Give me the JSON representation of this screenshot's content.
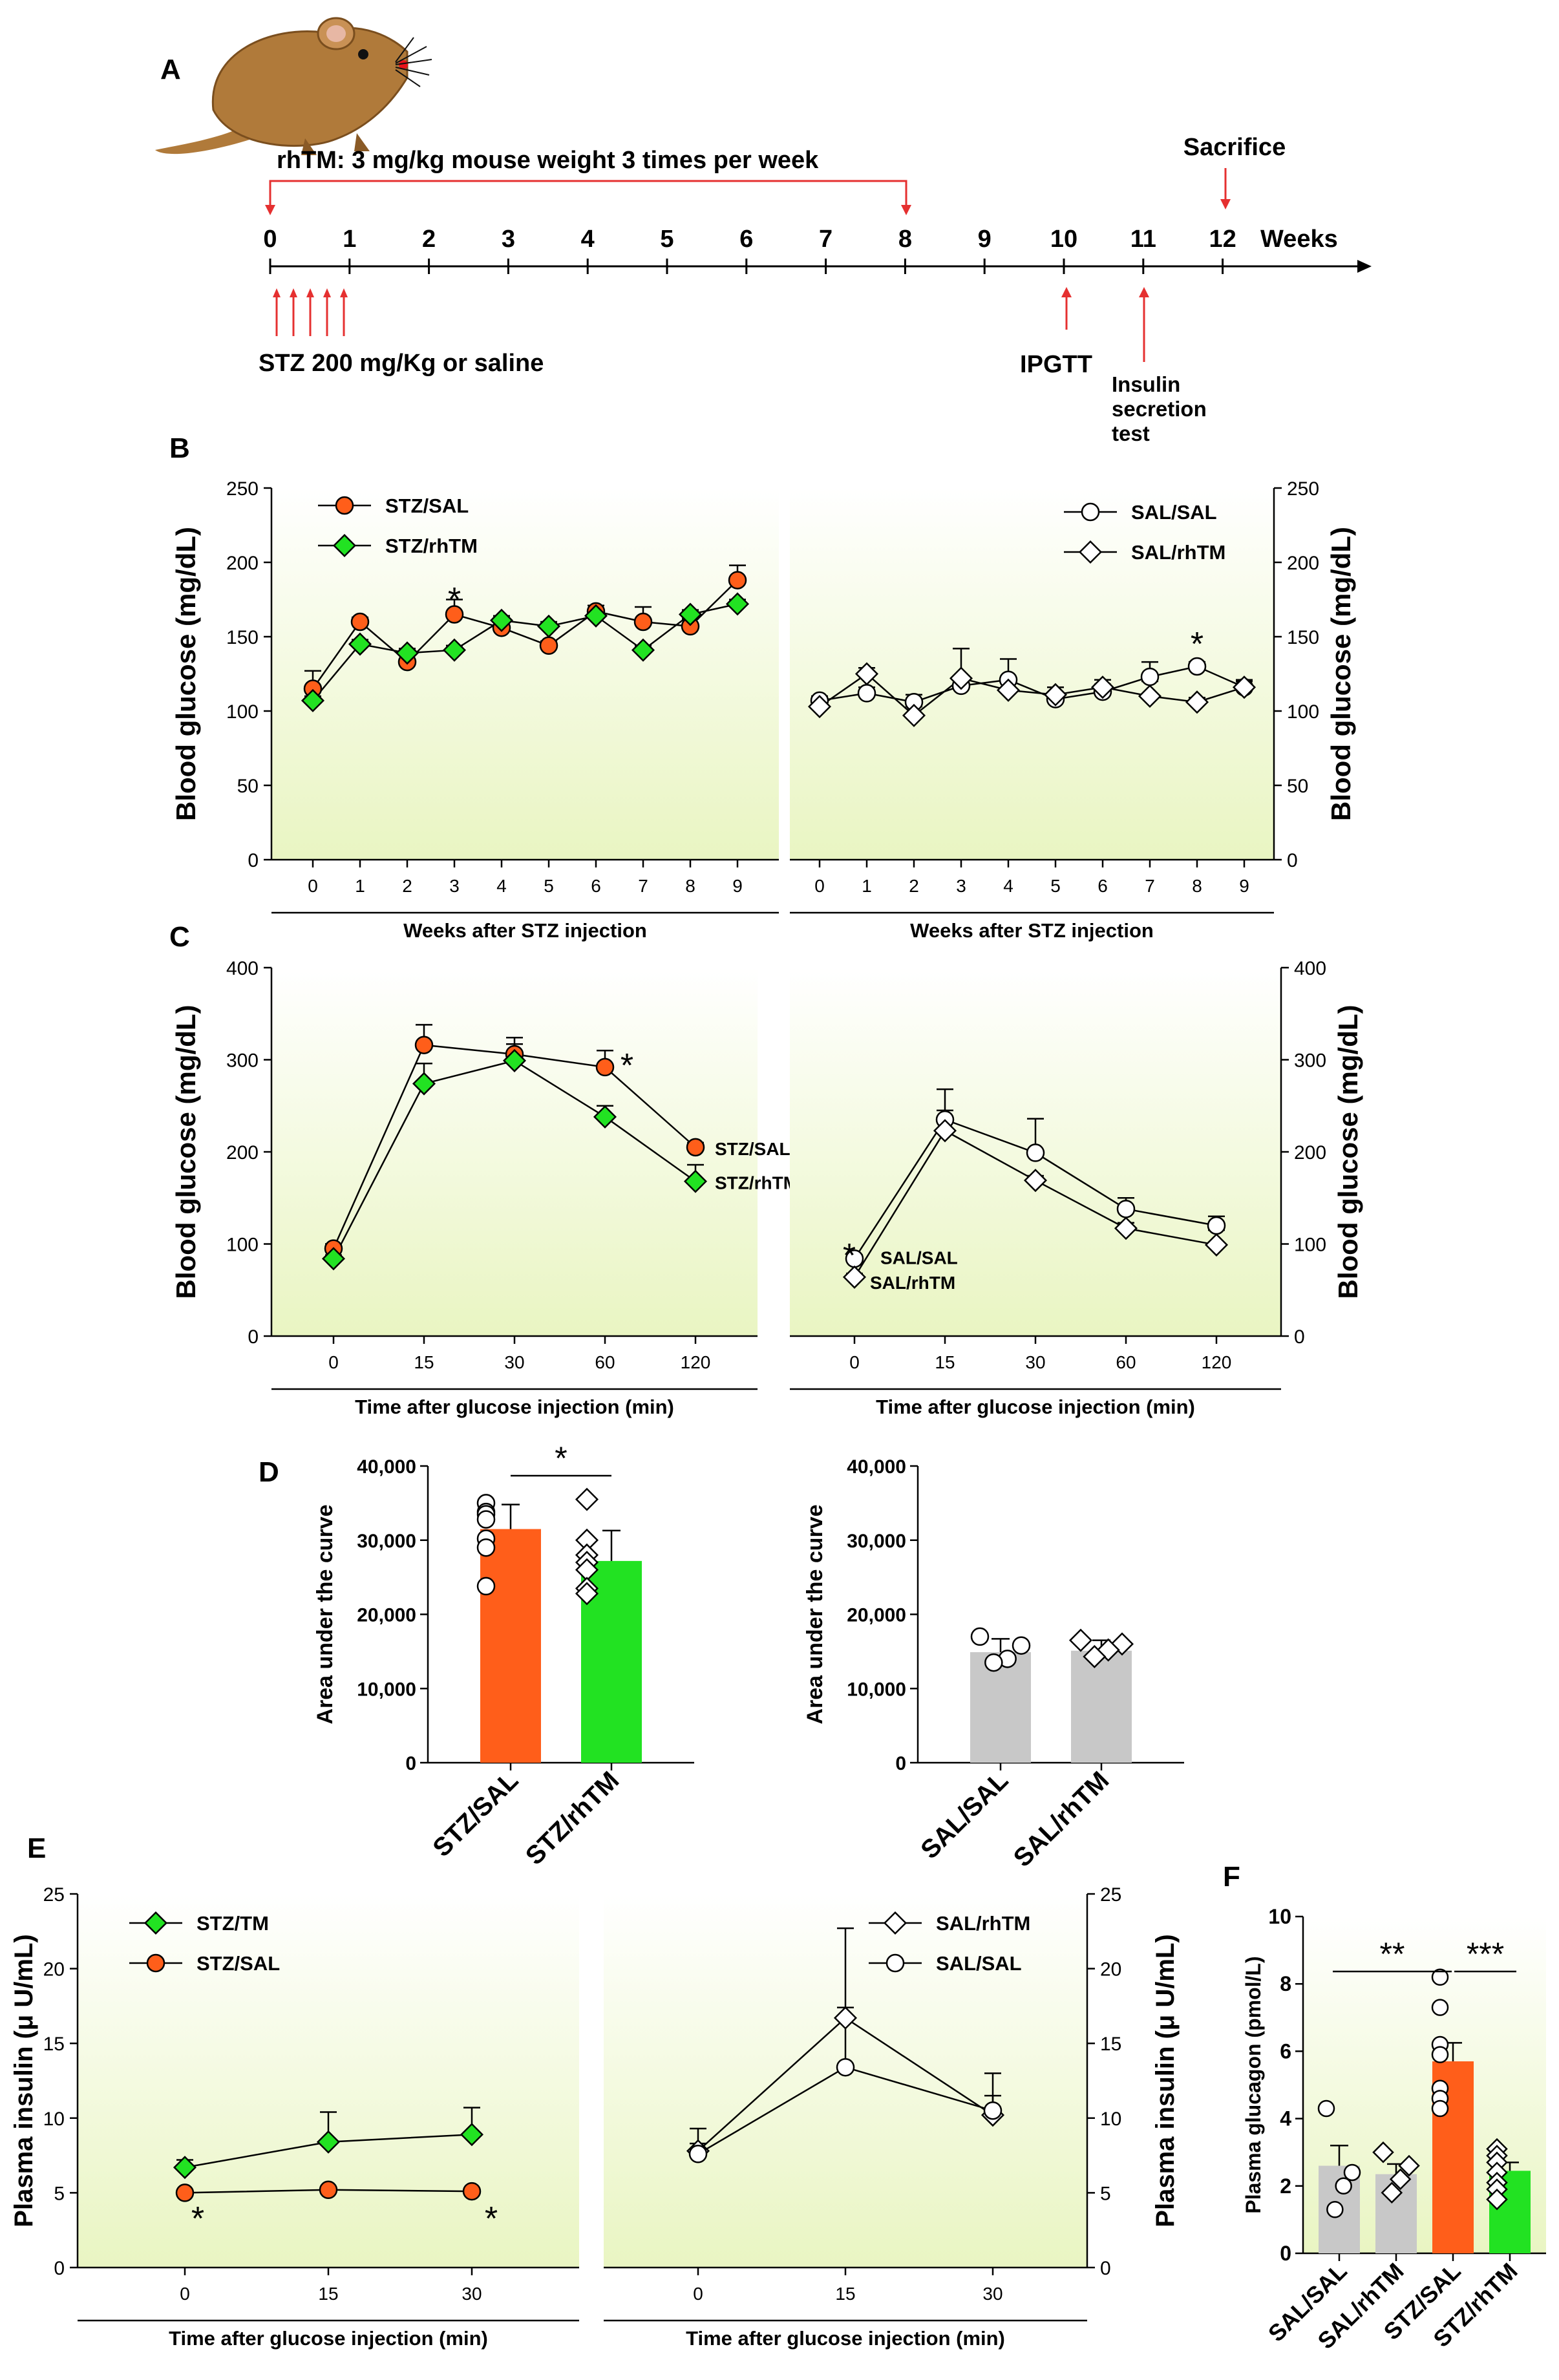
{
  "figure": {
    "panel_labels": [
      "A",
      "B",
      "C",
      "D",
      "E",
      "F"
    ],
    "colors": {
      "stz_sal": "#ff5e1a",
      "stz_rhtm": "#22e222",
      "sal_bar": "#c8c8c8",
      "red_line": "#e53030",
      "bg_top": "#ffffff",
      "bg_bottom": "#e9f5c2",
      "mouse_body": "#b07a3a"
    }
  },
  "timeline": {
    "treatment_label": "rhTM: 3 mg/kg mouse weight 3 times per week",
    "sacrifice_label": "Sacrifice",
    "weeks_label": "Weeks",
    "week_ticks": [
      "0",
      "1",
      "2",
      "3",
      "4",
      "5",
      "6",
      "7",
      "8",
      "9",
      "10",
      "11",
      "12"
    ],
    "stz_label": "STZ 200 mg/Kg or saline",
    "ipgtt_label": "IPGTT",
    "insulin_test_label": [
      "Insulin",
      "secretion",
      "test"
    ],
    "mouse_icon": "mouse-icon"
  },
  "chart_data": [
    {
      "panel": "B",
      "type": "line",
      "xlabel": "Weeks after STZ injection",
      "ylabel": "Blood glucose (mg/dL)",
      "x": [
        "0",
        "1",
        "2",
        "3",
        "4",
        "5",
        "6",
        "7",
        "8",
        "9"
      ],
      "ylim": [
        0,
        250
      ],
      "yticks": [
        "0",
        "50",
        "100",
        "150",
        "200",
        "250"
      ],
      "series": [
        {
          "name": "STZ/SAL",
          "marker": "circle",
          "color": "#ff5e1a",
          "values": [
            115,
            160,
            133,
            165,
            156,
            144,
            167,
            160,
            157,
            188
          ],
          "err": [
            12,
            3,
            5,
            10,
            4,
            3,
            4,
            10,
            5,
            10
          ]
        },
        {
          "name": "STZ/rhTM",
          "marker": "diamond",
          "color": "#22e222",
          "values": [
            107,
            145,
            139,
            141,
            161,
            157,
            164,
            141,
            165,
            172
          ],
          "err": [
            3,
            3,
            3,
            3,
            3,
            3,
            3,
            3,
            3,
            3
          ]
        }
      ],
      "annotations": [
        {
          "text": "*",
          "x": "3"
        }
      ]
    },
    {
      "panel": "B",
      "type": "line",
      "xlabel": "Weeks after STZ injection",
      "ylabel": "Blood glucose (mg/dL)",
      "x": [
        "0",
        "1",
        "2",
        "3",
        "4",
        "5",
        "6",
        "7",
        "8",
        "9"
      ],
      "ylim": [
        0,
        250
      ],
      "yticks": [
        "0",
        "50",
        "100",
        "150",
        "200",
        "250"
      ],
      "series": [
        {
          "name": "SAL/SAL",
          "marker": "circle",
          "color": "#ffffff",
          "values": [
            107,
            112,
            106,
            117,
            121,
            108,
            113,
            123,
            130,
            116
          ],
          "err": [
            3,
            4,
            5,
            6,
            14,
            4,
            5,
            10,
            3,
            4
          ]
        },
        {
          "name": "SAL/rhTM",
          "marker": "diamond",
          "color": "#ffffff",
          "values": [
            103,
            125,
            97,
            122,
            114,
            111,
            116,
            110,
            106,
            116
          ],
          "err": [
            4,
            4,
            6,
            20,
            8,
            5,
            5,
            10,
            3,
            5
          ]
        }
      ],
      "annotations": [
        {
          "text": "*",
          "x": "8"
        }
      ]
    },
    {
      "panel": "C",
      "type": "line",
      "xlabel": "Time after glucose injection (min)",
      "ylabel": "Blood glucose (mg/dL)",
      "x": [
        "0",
        "15",
        "30",
        "60",
        "120"
      ],
      "ylim": [
        0,
        400
      ],
      "yticks": [
        "0",
        "100",
        "200",
        "300",
        "400"
      ],
      "series": [
        {
          "name": "STZ/SAL",
          "marker": "circle",
          "color": "#ff5e1a",
          "values": [
            95,
            316,
            306,
            292,
            205
          ],
          "err": [
            5,
            22,
            18,
            18,
            5
          ]
        },
        {
          "name": "STZ/rhTM",
          "marker": "diamond",
          "color": "#22e222",
          "values": [
            84,
            274,
            299,
            238,
            168
          ],
          "err": [
            4,
            22,
            18,
            12,
            18
          ]
        }
      ],
      "annotations": [
        {
          "text": "*",
          "x": "60"
        }
      ]
    },
    {
      "panel": "C",
      "type": "line",
      "xlabel": "Time after glucose injection (min)",
      "ylabel": "Blood glucose (mg/dL)",
      "x": [
        "0",
        "15",
        "30",
        "60",
        "120"
      ],
      "ylim": [
        0,
        400
      ],
      "yticks": [
        "0",
        "100",
        "200",
        "300",
        "400"
      ],
      "series": [
        {
          "name": "SAL/SAL",
          "marker": "circle",
          "color": "#ffffff",
          "values": [
            84,
            235,
            199,
            138,
            120
          ],
          "err": [
            4,
            33,
            37,
            12,
            10
          ]
        },
        {
          "name": "SAL/rhTM",
          "marker": "diamond",
          "color": "#ffffff",
          "values": [
            64,
            223,
            169,
            117,
            99
          ],
          "err": [
            4,
            22,
            5,
            6,
            16
          ]
        }
      ],
      "annotations": [
        {
          "text": "*",
          "x": "0"
        }
      ]
    },
    {
      "panel": "D",
      "type": "bar",
      "ylabel": "Area under the curve",
      "categories": [
        "STZ/SAL",
        "STZ/rhTM"
      ],
      "ylim": [
        0,
        40000
      ],
      "yticks": [
        "0",
        "10,000",
        "20,000",
        "30,000",
        "40,000"
      ],
      "values": [
        31500,
        27200
      ],
      "err": [
        3300,
        4100
      ],
      "colors": [
        "#ff5e1a",
        "#22e222"
      ],
      "points": [
        [
          35000,
          33800,
          33500,
          32800,
          30200,
          29000,
          23800
        ],
        [
          35500,
          30000,
          28000,
          27000,
          26000,
          23500,
          22800
        ]
      ],
      "annotations": [
        {
          "text": "*",
          "between": [
            "STZ/SAL",
            "STZ/rhTM"
          ]
        }
      ]
    },
    {
      "panel": "D",
      "type": "bar",
      "ylabel": "Area under the curve",
      "categories": [
        "SAL/SAL",
        "SAL/rhTM"
      ],
      "ylim": [
        0,
        40000
      ],
      "yticks": [
        "0",
        "10,000",
        "20,000",
        "30,000",
        "40,000"
      ],
      "values": [
        14900,
        15100
      ],
      "err": [
        1800,
        1400
      ],
      "colors": [
        "#c8c8c8",
        "#c8c8c8"
      ],
      "points": [
        [
          17000,
          15800,
          14000,
          13500
        ],
        [
          16500,
          16000,
          15200,
          14300
        ]
      ]
    },
    {
      "panel": "E",
      "type": "line",
      "xlabel": "Time after glucose injection (min)",
      "ylabel": "Plasma insulin (μ U/mL)",
      "x": [
        "0",
        "15",
        "30"
      ],
      "ylim": [
        0,
        25
      ],
      "yticks": [
        "0",
        "5",
        "10",
        "15",
        "20",
        "25"
      ],
      "series": [
        {
          "name": "STZ/TM",
          "marker": "diamond",
          "color": "#22e222",
          "values": [
            6.7,
            8.4,
            8.9
          ],
          "err": [
            0.5,
            2.0,
            1.8
          ]
        },
        {
          "name": "STZ/SAL",
          "marker": "circle",
          "color": "#ff5e1a",
          "values": [
            5.0,
            5.2,
            5.1
          ],
          "err": [
            0.2,
            0.2,
            0.2
          ]
        }
      ],
      "annotations": [
        {
          "text": "*",
          "x": "0"
        },
        {
          "text": "*",
          "x": "30"
        }
      ]
    },
    {
      "panel": "E",
      "type": "line",
      "xlabel": "Time after glucose injection (min)",
      "ylabel": "Plasma insulin (μ U/mL)",
      "x": [
        "0",
        "15",
        "30"
      ],
      "ylim": [
        0,
        25
      ],
      "yticks": [
        "0",
        "5",
        "10",
        "15",
        "20",
        "25"
      ],
      "series": [
        {
          "name": "SAL/rhTM",
          "marker": "diamond",
          "color": "#ffffff",
          "values": [
            7.8,
            16.7,
            10.2
          ],
          "err": [
            1.5,
            6.0,
            1.3
          ]
        },
        {
          "name": "SAL/SAL",
          "marker": "circle",
          "color": "#ffffff",
          "values": [
            7.6,
            13.4,
            10.5
          ],
          "err": [
            0.7,
            4.0,
            2.5
          ]
        }
      ]
    },
    {
      "panel": "F",
      "type": "bar",
      "ylabel": "Plasma glucagon (pmol/L)",
      "categories": [
        "SAL/SAL",
        "SAL/rhTM",
        "STZ/SAL",
        "STZ/rhTM"
      ],
      "ylim": [
        0,
        10
      ],
      "yticks": [
        "0",
        "2",
        "4",
        "6",
        "8",
        "10"
      ],
      "values": [
        2.6,
        2.35,
        5.7,
        2.45
      ],
      "err": [
        0.6,
        0.3,
        0.55,
        0.25
      ],
      "colors": [
        "#c8c8c8",
        "#c8c8c8",
        "#ff5e1a",
        "#22e222"
      ],
      "markers": [
        "circle",
        "diamond",
        "circle",
        "diamond"
      ],
      "points": [
        [
          4.3,
          2.4,
          2.0,
          1.3
        ],
        [
          3.0,
          2.6,
          2.2,
          1.8
        ],
        [
          8.2,
          7.3,
          6.2,
          5.9,
          4.9,
          4.6,
          4.3
        ],
        [
          3.1,
          2.9,
          2.7,
          2.4,
          2.1,
          1.9,
          1.6
        ]
      ],
      "annotations": [
        {
          "text": "**",
          "between": [
            "SAL/SAL",
            "STZ/SAL"
          ]
        },
        {
          "text": "***",
          "between": [
            "STZ/SAL",
            "STZ/rhTM"
          ]
        }
      ]
    }
  ]
}
